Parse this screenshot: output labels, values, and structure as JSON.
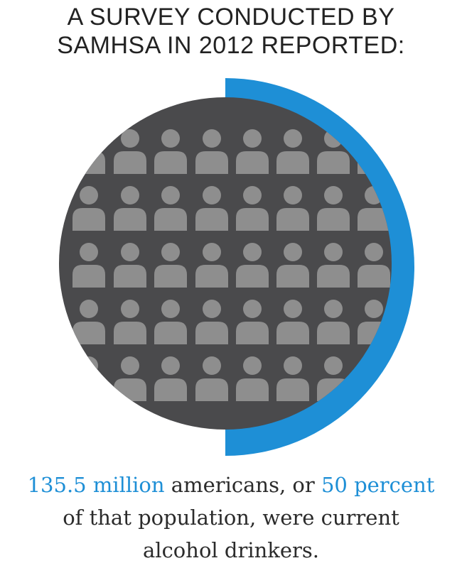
{
  "headline": {
    "line1": "A SURVEY CONDUCTED BY",
    "line2": "SAMHSA IN 2012 REPORTED:"
  },
  "graphic": {
    "percent_highlighted": 50,
    "icon": "person-icon",
    "colors": {
      "accent": "#1e8fd6",
      "circle": "#4a4a4c",
      "person": "#8e8e8e",
      "text": "#2b2b2b"
    }
  },
  "caption": {
    "highlight_count": "135.5 million",
    "text_after_count": " americans, or ",
    "highlight_percent": "50 percent",
    "line2": "of that population, were current",
    "line3": "alcohol drinkers."
  }
}
